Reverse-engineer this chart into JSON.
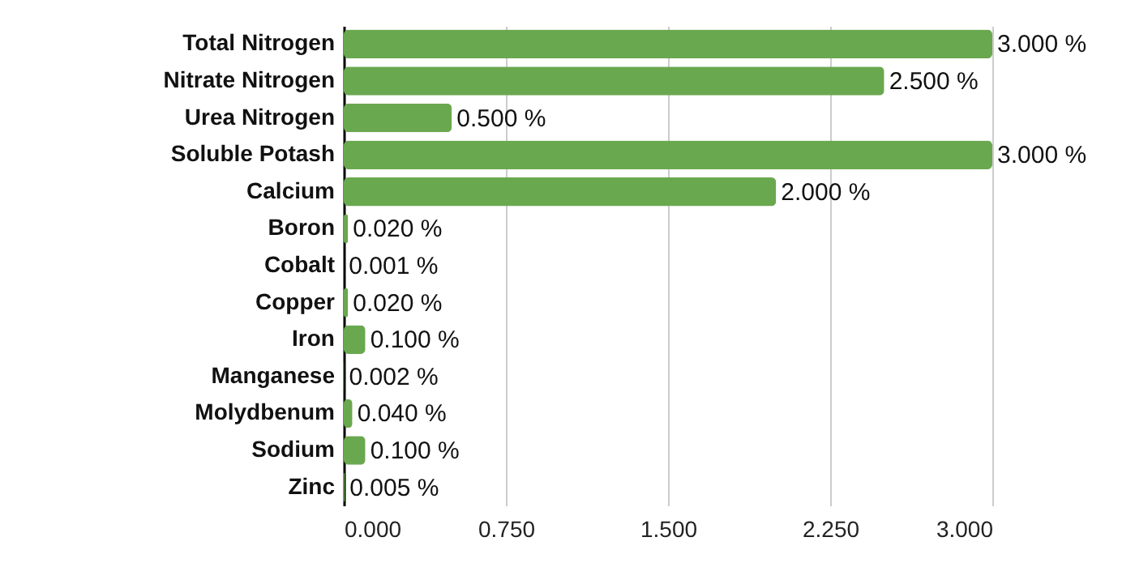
{
  "chart_data": {
    "type": "bar",
    "orientation": "horizontal",
    "categories": [
      "Total Nitrogen",
      "Nitrate Nitrogen",
      "Urea Nitrogen",
      "Soluble Potash",
      "Calcium",
      "Boron",
      "Cobalt",
      "Copper",
      "Iron",
      "Manganese",
      "Molydbenum",
      "Sodium",
      "Zinc"
    ],
    "values": [
      3.0,
      2.5,
      0.5,
      3.0,
      2.0,
      0.02,
      0.001,
      0.02,
      0.1,
      0.002,
      0.04,
      0.1,
      0.005
    ],
    "value_labels": [
      "3.000 %",
      "2.500 %",
      "0.500 %",
      "3.000 %",
      "2.000 %",
      "0.020 %",
      "0.001 %",
      "0.020 %",
      "0.100 %",
      "0.002 %",
      "0.040 %",
      "0.100 %",
      "0.005 %"
    ],
    "color": "#6aa84f",
    "xlim": [
      0,
      3
    ],
    "xticks": [
      {
        "value": 0,
        "label": "0.000"
      },
      {
        "value": 0.75,
        "label": "0.750"
      },
      {
        "value": 1.5,
        "label": "1.500"
      },
      {
        "value": 2.25,
        "label": "2.250"
      },
      {
        "value": 3,
        "label": "3.000"
      }
    ],
    "grid": "x"
  }
}
